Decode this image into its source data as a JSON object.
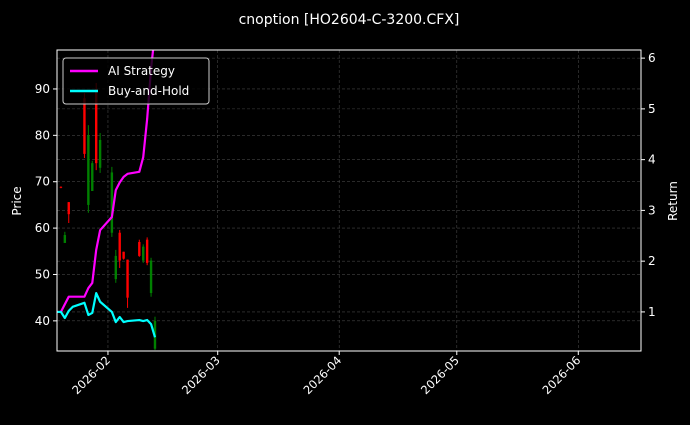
{
  "chart_data": {
    "type": "candlestick+line",
    "title": "cnoption [HO2604-C-3200.CFX]",
    "ylabel": "Price",
    "ylabel_right": "Return",
    "xlim": [
      "2026-01-19",
      "2026-06-17"
    ],
    "ylim": [
      33.5,
      98.4
    ],
    "ylim_right": [
      0.23,
      6.16
    ],
    "x_ticks": [
      "2026-02",
      "2026-03",
      "2026-04",
      "2026-05",
      "2026-06"
    ],
    "x_tick_dates": [
      "2026-02-01",
      "2026-03-01",
      "2026-04-01",
      "2026-05-01",
      "2026-06-01"
    ],
    "y_ticks": [
      40,
      50,
      60,
      70,
      80,
      90
    ],
    "y_ticks_right": [
      1,
      2,
      3,
      4,
      5,
      6
    ],
    "grid": true,
    "legend_placement": "top-left",
    "colors": {
      "up": "#008000",
      "down": "#ff0000",
      "ai": "#ff00ff",
      "bh": "#00ffff",
      "grid": "#444444"
    },
    "candles": [
      {
        "date": "2026-01-20",
        "open": 68.9,
        "close": 68.7,
        "high": 69.0,
        "low": 68.6
      },
      {
        "date": "2026-01-21",
        "open": 56.8,
        "close": 58.5,
        "high": 59.2,
        "low": 56.8
      },
      {
        "date": "2026-01-22",
        "open": 65.6,
        "close": 63.0,
        "high": 65.6,
        "low": 61.1
      },
      {
        "date": "2026-01-26",
        "open": 88.0,
        "close": 76.0,
        "high": 89.1,
        "low": 75.1
      },
      {
        "date": "2026-01-27",
        "open": 65.0,
        "close": 80.0,
        "high": 82.2,
        "low": 63.3
      },
      {
        "date": "2026-01-28",
        "open": 68.0,
        "close": 74.0,
        "high": 74.5,
        "low": 68.0
      },
      {
        "date": "2026-01-29",
        "open": 90.0,
        "close": 74.0,
        "high": 91.3,
        "low": 72.5
      },
      {
        "date": "2026-01-30",
        "open": 73.0,
        "close": 79.0,
        "high": 80.5,
        "low": 71.9
      },
      {
        "date": "2026-02-02",
        "open": 59.0,
        "close": 72.0,
        "high": 73.2,
        "low": 58.1
      },
      {
        "date": "2026-02-03",
        "open": 49.0,
        "close": 54.0,
        "high": 55.3,
        "low": 48.2
      },
      {
        "date": "2026-02-04",
        "open": 59.0,
        "close": 53.0,
        "high": 59.6,
        "low": 51.4
      },
      {
        "date": "2026-02-05",
        "open": 54.9,
        "close": 53.4,
        "high": 54.9,
        "low": 53.2
      },
      {
        "date": "2026-02-06",
        "open": 53.2,
        "close": 45.0,
        "high": 53.2,
        "low": 42.8
      },
      {
        "date": "2026-02-09",
        "open": 57.0,
        "close": 54.0,
        "high": 57.5,
        "low": 53.8
      },
      {
        "date": "2026-02-10",
        "open": 53.0,
        "close": 56.0,
        "high": 56.5,
        "low": 52.5
      },
      {
        "date": "2026-02-11",
        "open": 57.5,
        "close": 52.5,
        "high": 58.0,
        "low": 52.0
      },
      {
        "date": "2026-02-12",
        "open": 46.0,
        "close": 53.0,
        "high": 53.6,
        "low": 45.2
      },
      {
        "date": "2026-02-13",
        "open": 34.0,
        "close": 40.0,
        "high": 40.9,
        "low": 33.7
      }
    ],
    "series": [
      {
        "name": "AI Strategy",
        "axis": "right",
        "dates": [
          "2026-01-19",
          "2026-01-20",
          "2026-01-21",
          "2026-01-22",
          "2026-01-23",
          "2026-01-26",
          "2026-01-27",
          "2026-01-28",
          "2026-01-29",
          "2026-01-30",
          "2026-02-02",
          "2026-02-03",
          "2026-02-04",
          "2026-02-05",
          "2026-02-06",
          "2026-02-09",
          "2026-02-10",
          "2026-02-11",
          "2026-02-12",
          "2026-02-13"
        ],
        "values": [
          1.0,
          1.0,
          1.15,
          1.3,
          1.3,
          1.3,
          1.47,
          1.57,
          2.22,
          2.61,
          2.87,
          3.4,
          3.55,
          3.66,
          3.72,
          3.76,
          4.05,
          4.8,
          5.8,
          6.5
        ]
      },
      {
        "name": "Buy-and-Hold",
        "axis": "right",
        "dates": [
          "2026-01-19",
          "2026-01-20",
          "2026-01-21",
          "2026-01-22",
          "2026-01-23",
          "2026-01-26",
          "2026-01-27",
          "2026-01-28",
          "2026-01-29",
          "2026-01-30",
          "2026-02-02",
          "2026-02-03",
          "2026-02-04",
          "2026-02-05",
          "2026-02-06",
          "2026-02-09",
          "2026-02-10",
          "2026-02-11",
          "2026-02-12",
          "2026-02-13"
        ],
        "values": [
          1.0,
          1.0,
          0.88,
          1.02,
          1.1,
          1.18,
          0.94,
          0.98,
          1.37,
          1.2,
          1.0,
          0.8,
          0.9,
          0.8,
          0.82,
          0.84,
          0.82,
          0.84,
          0.76,
          0.5
        ]
      }
    ]
  }
}
